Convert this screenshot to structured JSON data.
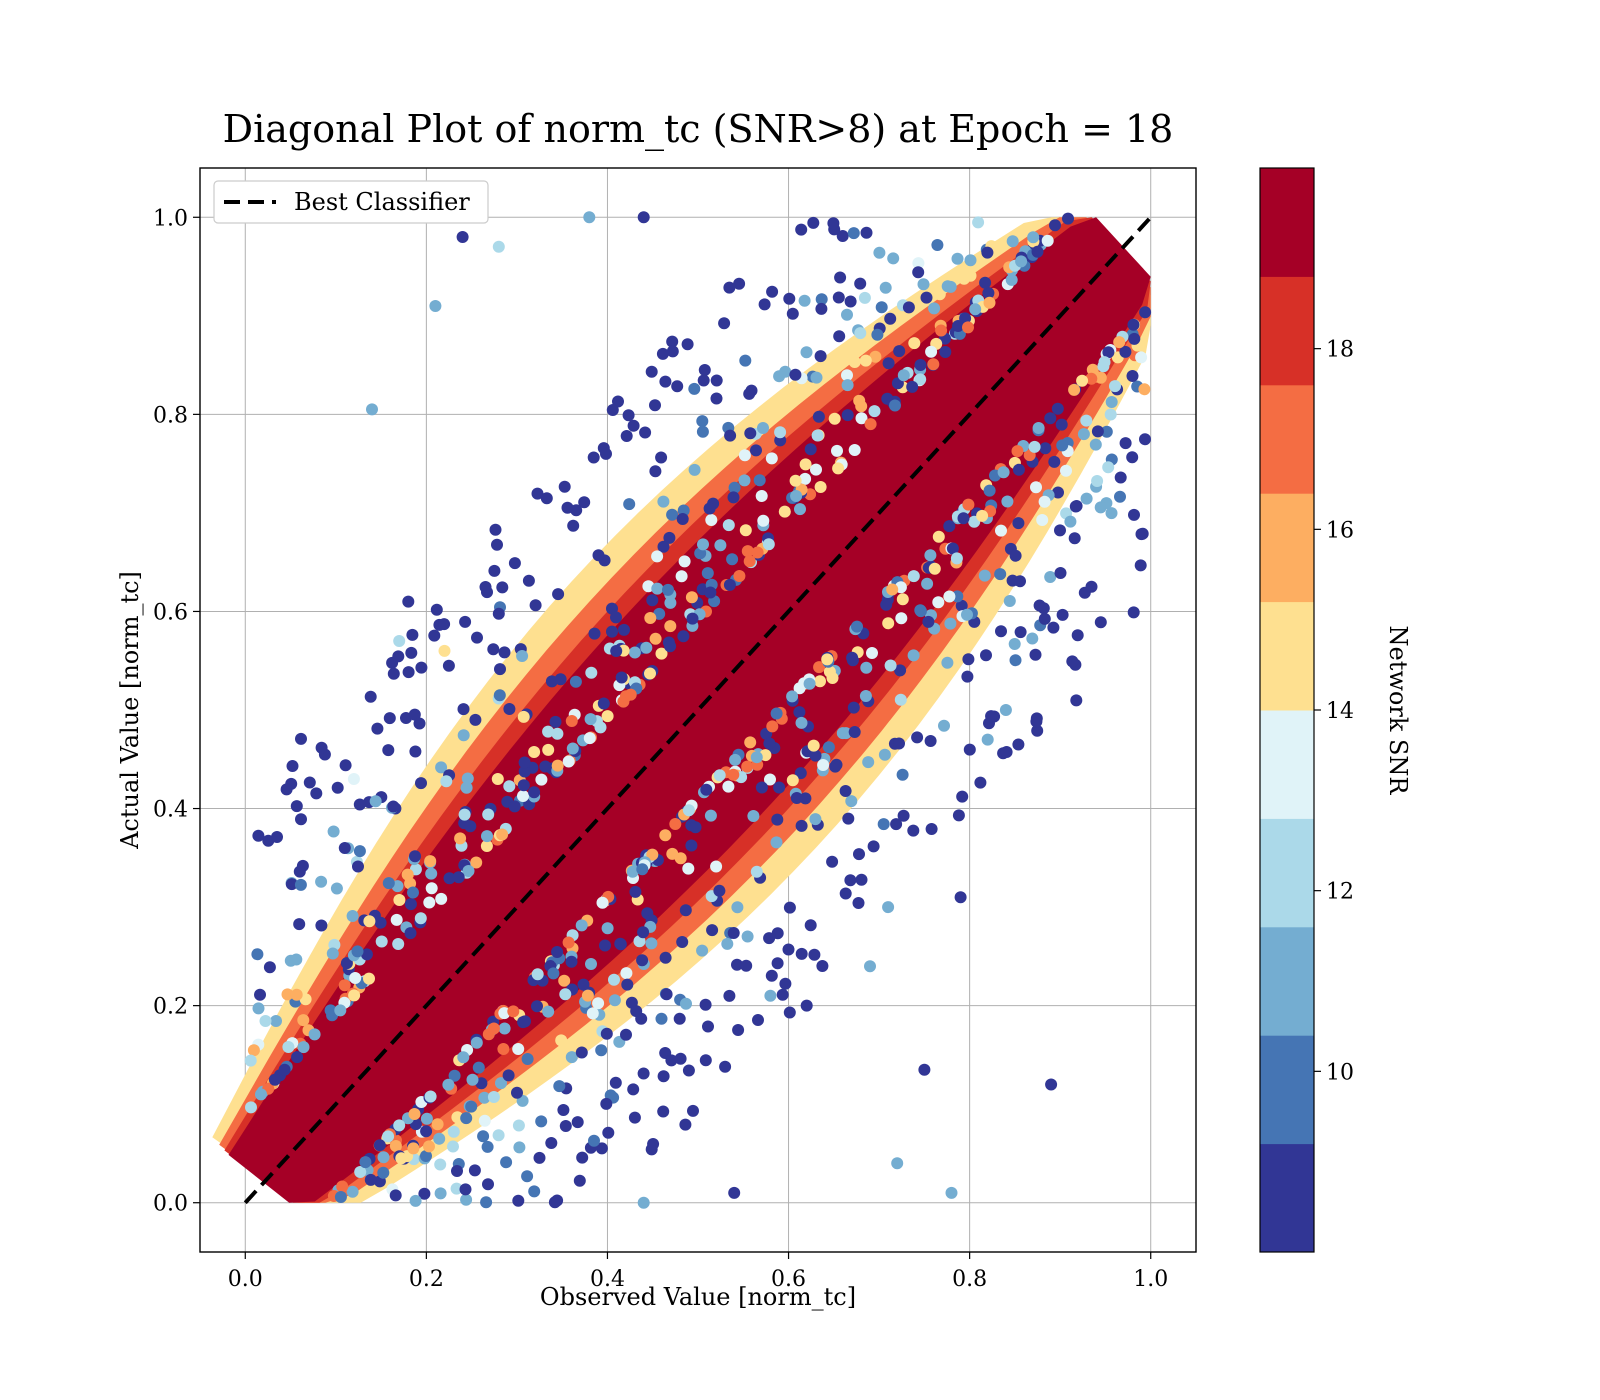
{
  "chart_data": {
    "type": "scatter",
    "title": "Diagonal Plot of norm_tc (SNR>8) at Epoch = 18",
    "xlabel": "Observed Value [norm_tc]",
    "ylabel": "Actual Value [norm_tc]",
    "xlim": [
      -0.05,
      1.05
    ],
    "ylim": [
      -0.05,
      1.05
    ],
    "x_ticks": [
      "0.0",
      "0.2",
      "0.4",
      "0.6",
      "0.8",
      "1.0"
    ],
    "y_ticks": [
      "0.0",
      "0.2",
      "0.4",
      "0.6",
      "0.8",
      "1.0"
    ],
    "grid": true,
    "legend": {
      "position": "top-left",
      "entries": [
        {
          "label": "Best Classifier",
          "style": "dashed",
          "color": "#000000"
        }
      ]
    },
    "reference_line": {
      "label": "Best Classifier",
      "x": [
        0.0,
        1.0
      ],
      "y": [
        0.0,
        1.0
      ]
    },
    "colorbar": {
      "label": "Network SNR",
      "range": [
        8,
        20
      ],
      "ticks": [
        "10",
        "12",
        "14",
        "16",
        "18"
      ],
      "tick_values": [
        10,
        12,
        14,
        16,
        18
      ],
      "colors": [
        "#313695",
        "#4575b4",
        "#74add1",
        "#abd9e9",
        "#e0f3f8",
        "#fee090",
        "#fdae61",
        "#f46d43",
        "#d73027",
        "#a50026"
      ]
    },
    "sample_points": [
      {
        "x": 0.14,
        "y": 0.805,
        "snr": 10.5
      },
      {
        "x": 0.24,
        "y": 0.98,
        "snr": 8.5
      },
      {
        "x": 0.21,
        "y": 0.91,
        "snr": 10.5
      },
      {
        "x": 0.28,
        "y": 0.97,
        "snr": 12.0
      },
      {
        "x": 0.38,
        "y": 1.0,
        "snr": 11.0
      },
      {
        "x": 0.44,
        "y": 1.0,
        "snr": 8.5
      },
      {
        "x": 0.18,
        "y": 0.61,
        "snr": 8.5
      },
      {
        "x": 0.17,
        "y": 0.57,
        "snr": 12.5
      },
      {
        "x": 0.22,
        "y": 0.56,
        "snr": 15.0
      },
      {
        "x": 0.12,
        "y": 0.43,
        "snr": 13.5
      },
      {
        "x": 0.89,
        "y": 0.12,
        "snr": 8.5
      },
      {
        "x": 0.79,
        "y": 0.31,
        "snr": 8.5
      },
      {
        "x": 0.78,
        "y": 0.01,
        "snr": 10.5
      },
      {
        "x": 0.84,
        "y": 0.5,
        "snr": 10.5
      },
      {
        "x": 0.82,
        "y": 0.47,
        "snr": 10.5
      },
      {
        "x": 0.75,
        "y": 0.135,
        "snr": 9.0
      },
      {
        "x": 0.72,
        "y": 0.04,
        "snr": 10.5
      },
      {
        "x": 0.54,
        "y": 0.01,
        "snr": 8.5
      },
      {
        "x": 0.44,
        "y": 0.0,
        "snr": 10.5
      },
      {
        "x": 0.71,
        "y": 0.3,
        "snr": 11.5
      },
      {
        "x": 0.69,
        "y": 0.24,
        "snr": 10.5
      },
      {
        "x": 0.62,
        "y": 0.2,
        "snr": 9.0
      },
      {
        "x": 0.58,
        "y": 0.21,
        "snr": 10.5
      }
    ]
  }
}
